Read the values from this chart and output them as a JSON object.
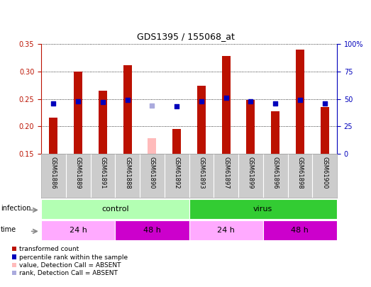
{
  "title": "GDS1395 / 155068_at",
  "samples": [
    "GSM61886",
    "GSM61889",
    "GSM61891",
    "GSM61888",
    "GSM61890",
    "GSM61892",
    "GSM61893",
    "GSM61897",
    "GSM61899",
    "GSM61896",
    "GSM61898",
    "GSM61900"
  ],
  "transformed_count": [
    0.216,
    0.3,
    0.265,
    0.311,
    null,
    0.195,
    0.274,
    0.328,
    0.248,
    0.228,
    0.34,
    0.235
  ],
  "transformed_count_absent": [
    null,
    null,
    null,
    null,
    0.178,
    null,
    null,
    null,
    null,
    null,
    null,
    null
  ],
  "percentile_rank": [
    46,
    48,
    47,
    49,
    null,
    43,
    48,
    51,
    48,
    46,
    49,
    46
  ],
  "percentile_rank_absent": [
    null,
    null,
    null,
    null,
    44,
    null,
    null,
    null,
    null,
    null,
    null,
    null
  ],
  "ylim_left": [
    0.15,
    0.35
  ],
  "ylim_right": [
    0,
    100
  ],
  "yticks_left": [
    0.15,
    0.2,
    0.25,
    0.3,
    0.35
  ],
  "yticks_right": [
    0,
    25,
    50,
    75,
    100
  ],
  "infection_groups": [
    {
      "label": "control",
      "start": 0,
      "end": 6,
      "color": "#b3ffb3"
    },
    {
      "label": "virus",
      "start": 6,
      "end": 12,
      "color": "#33cc33"
    }
  ],
  "time_groups": [
    {
      "label": "24 h",
      "start": 0,
      "end": 3,
      "color": "#ffaaff"
    },
    {
      "label": "48 h",
      "start": 3,
      "end": 6,
      "color": "#cc00cc"
    },
    {
      "label": "24 h",
      "start": 6,
      "end": 9,
      "color": "#ffaaff"
    },
    {
      "label": "48 h",
      "start": 9,
      "end": 12,
      "color": "#cc00cc"
    }
  ],
  "bar_color_red": "#bb1100",
  "bar_color_pink": "#ffbbbb",
  "dot_color_blue": "#0000bb",
  "dot_color_lightblue": "#aaaadd",
  "legend_items": [
    {
      "color": "#bb1100",
      "label": "transformed count"
    },
    {
      "color": "#0000bb",
      "label": "percentile rank within the sample"
    },
    {
      "color": "#ffbbbb",
      "label": "value, Detection Call = ABSENT"
    },
    {
      "color": "#aaaadd",
      "label": "rank, Detection Call = ABSENT"
    }
  ],
  "bar_width": 0.35,
  "dot_size": 18,
  "fig_width": 5.23,
  "fig_height": 4.05,
  "fig_dpi": 100
}
